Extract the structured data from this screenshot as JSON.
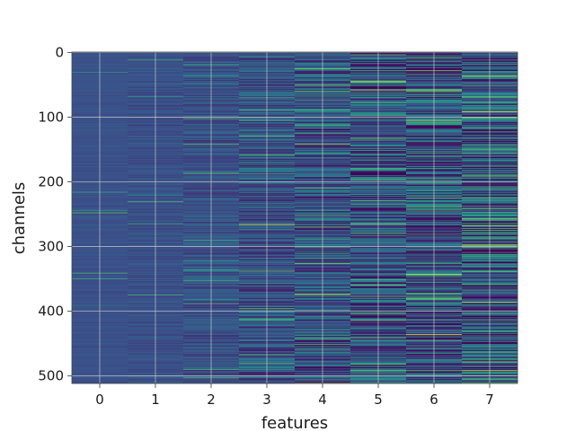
{
  "chart_data": {
    "type": "heatmap",
    "title": "",
    "xlabel": "features",
    "ylabel": "channels",
    "x_ticks": [
      "0",
      "1",
      "2",
      "3",
      "4",
      "5",
      "6",
      "7"
    ],
    "y_ticks": [
      "0",
      "100",
      "200",
      "300",
      "400",
      "500"
    ],
    "x_categories": [
      0,
      1,
      2,
      3,
      4,
      5,
      6,
      7
    ],
    "y_range": [
      0,
      511
    ],
    "n_channels": 512,
    "grid": true,
    "colormap": "viridis",
    "colormap_stops": [
      "#440154",
      "#3b528b",
      "#21918c",
      "#5ec962",
      "#fde725"
    ],
    "background_color": "#3b528b",
    "per_feature_variability": [
      0.05,
      0.1,
      0.18,
      0.3,
      0.4,
      0.48,
      0.55,
      0.62
    ],
    "highlights": [
      {
        "feature": 0,
        "channel": 216,
        "value": 0.6
      },
      {
        "feature": 0,
        "channel": 341,
        "value": 0.7
      },
      {
        "feature": 1,
        "channel": 265,
        "value": 0.6
      },
      {
        "feature": 1,
        "channel": 500,
        "value": 0.65
      },
      {
        "feature": 2,
        "channel": 353,
        "value": 0.65
      },
      {
        "feature": 3,
        "channel": 266,
        "value": 0.95
      },
      {
        "feature": 3,
        "channel": 158,
        "value": 0.75
      },
      {
        "feature": 4,
        "channel": 142,
        "value": 0.85
      },
      {
        "feature": 4,
        "channel": 25,
        "value": 0.8
      },
      {
        "feature": 4,
        "channel": 270,
        "value": 0.8
      },
      {
        "feature": 5,
        "channel": 45,
        "value": 0.95
      },
      {
        "feature": 5,
        "channel": 58,
        "value": 0.9
      },
      {
        "feature": 5,
        "channel": 133,
        "value": 0.8
      },
      {
        "feature": 5,
        "channel": 265,
        "value": 0.85
      },
      {
        "feature": 5,
        "channel": 280,
        "value": 0.8
      },
      {
        "feature": 6,
        "channel": 28,
        "value": 0.8
      },
      {
        "feature": 6,
        "channel": 105,
        "value": 0.95
      },
      {
        "feature": 6,
        "channel": 343,
        "value": 0.98
      },
      {
        "feature": 6,
        "channel": 436,
        "value": 1.0
      },
      {
        "feature": 6,
        "channel": 225,
        "value": 0.7
      },
      {
        "feature": 7,
        "channel": 92,
        "value": 1.0
      },
      {
        "feature": 7,
        "channel": 36,
        "value": 0.8
      },
      {
        "feature": 7,
        "channel": 190,
        "value": 0.75
      },
      {
        "feature": 7,
        "channel": 298,
        "value": 0.95
      },
      {
        "feature": 7,
        "channel": 386,
        "value": 0.9
      },
      {
        "feature": 7,
        "channel": 492,
        "value": 0.9
      }
    ]
  }
}
